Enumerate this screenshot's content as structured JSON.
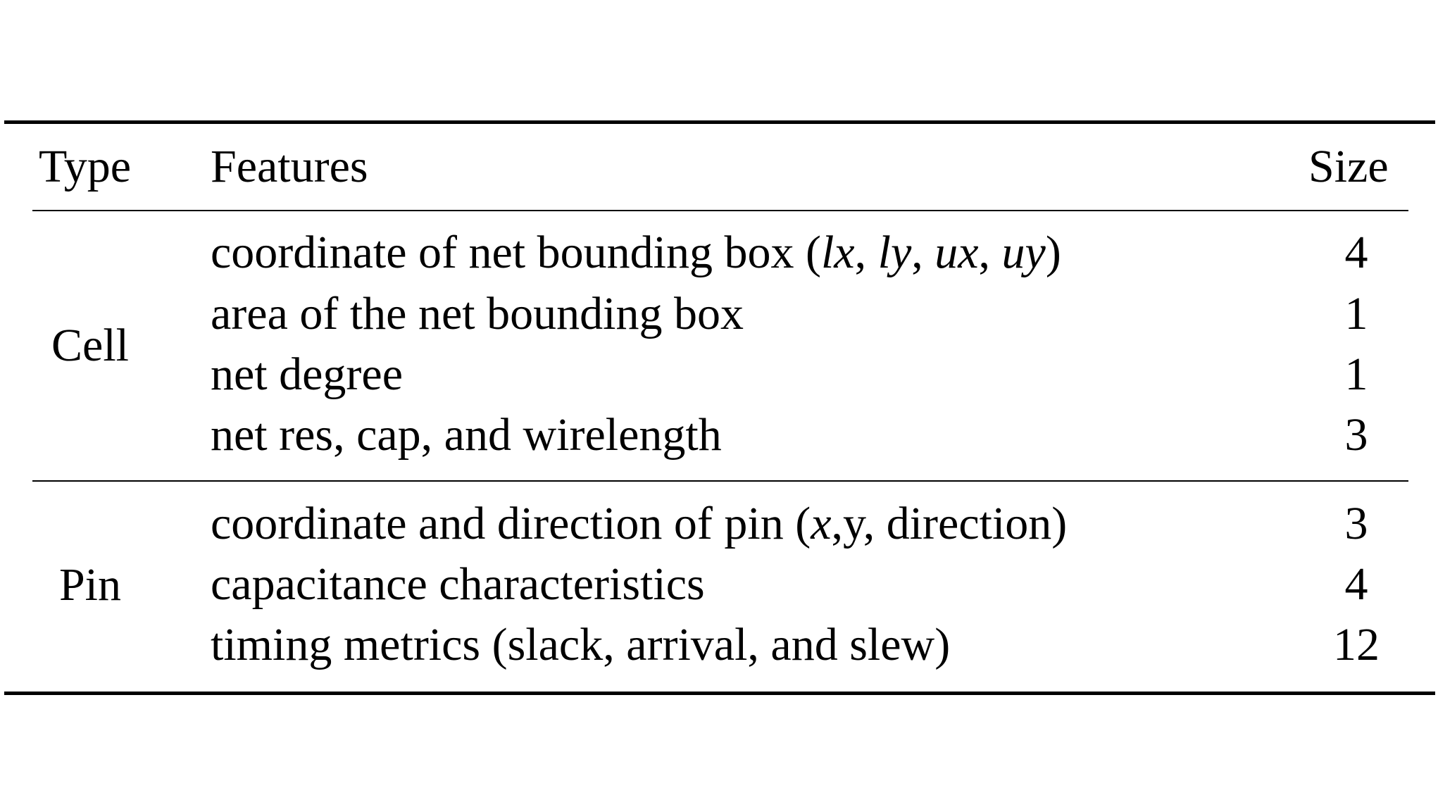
{
  "table": {
    "headers": {
      "type": "Type",
      "features": "Features",
      "size": "Size"
    },
    "groups": [
      {
        "type": "Cell",
        "rows": [
          {
            "feature_prefix": "coordinate of net bounding box (",
            "feature_math": [
              "lx",
              "ly",
              "ux",
              "uy"
            ],
            "feature_sep": ", ",
            "feature_suffix": ")",
            "size": "4"
          },
          {
            "feature": "area of the net bounding box",
            "size": "1"
          },
          {
            "feature": "net degree",
            "size": "1"
          },
          {
            "feature": "net res, cap, and wirelength",
            "size": "3"
          }
        ]
      },
      {
        "type": "Pin",
        "rows": [
          {
            "feature_prefix": "coordinate and direction of pin (",
            "feature_math": "x",
            "feature_suffix": ",y, direction)",
            "size": "3"
          },
          {
            "feature": "capacitance characteristics",
            "size": "4"
          },
          {
            "feature": "timing metrics (slack, arrival, and slew)",
            "size": "12"
          }
        ]
      }
    ]
  }
}
